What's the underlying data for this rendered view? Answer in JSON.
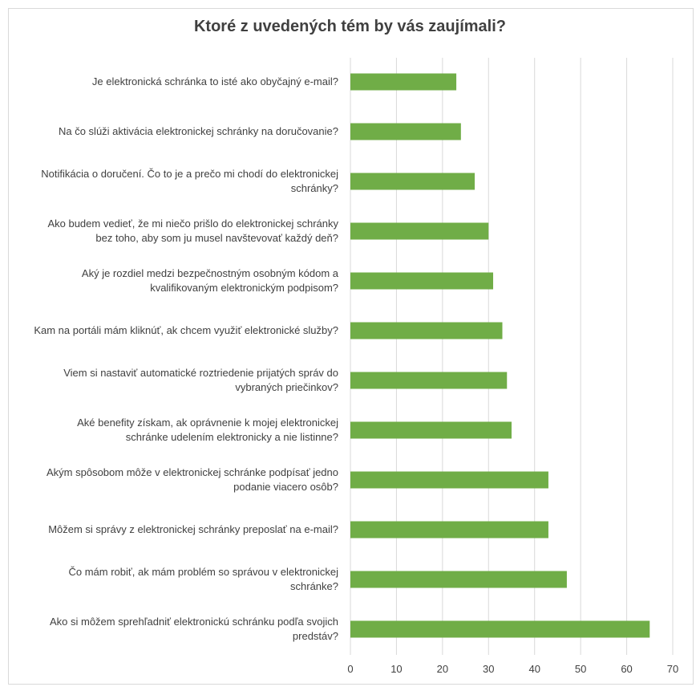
{
  "chart_data": {
    "type": "bar",
    "orientation": "horizontal",
    "title": "Ktoré z uvedených tém by vás zaujímali?",
    "categories": [
      "Je elektronická schránka to isté ako obyčajný e-mail?",
      "Na čo slúži aktivácia elektronickej schránky na doručovanie?",
      "Notifikácia o doručení. Čo to je a prečo mi chodí do elektronickej schránky?",
      "Ako budem vedieť, že mi niečo prišlo do elektronickej schránky bez toho, aby som ju musel navštevovať každý deň?",
      "Aký je rozdiel medzi bezpečnostným osobným kódom a kvalifikovaným elektronickým podpisom?",
      "Kam na portáli mám kliknúť, ak chcem využiť elektronické služby?",
      "Viem si nastaviť automatické roztriedenie prijatých správ do vybraných priečinkov?",
      "Aké benefity získam, ak oprávnenie k mojej elektronickej schránke udelením elektronicky a nie listinne?",
      "Akým spôsobom môže v elektronickej schránke podpísať jedno podanie viacero osôb?",
      "Môžem si správy z elektronickej schránky preposlať na e-mail?",
      "Čo mám robiť, ak mám problém so správou v elektronickej schránke?",
      "Ako si môžem sprehľadniť elektronickú schránku podľa svojich predstáv?"
    ],
    "label_lines": [
      [
        "Je elektronická schránka to isté ako obyčajný e-mail?"
      ],
      [
        "Na čo slúži aktivácia elektronickej schránky na doručovanie?"
      ],
      [
        "Notifikácia o doručení. Čo to je a prečo mi chodí do elektronickej",
        "schránky?"
      ],
      [
        "Ako budem vedieť, že mi niečo prišlo do elektronickej schránky",
        "bez toho, aby som ju musel navštevovať každý deň?"
      ],
      [
        "Aký je rozdiel medzi bezpečnostným osobným kódom a",
        "kvalifikovaným elektronickým podpisom?"
      ],
      [
        "Kam na portáli mám kliknúť, ak chcem využiť elektronické služby?"
      ],
      [
        "Viem si nastaviť automatické roztriedenie prijatých správ do",
        "vybraných priečinkov?"
      ],
      [
        "Aké benefity získam, ak oprávnenie k mojej elektronickej",
        "schránke udelením elektronicky a nie listinne?"
      ],
      [
        "Akým spôsobom môže v elektronickej schránke podpísať jedno",
        "podanie viacero osôb?"
      ],
      [
        "Môžem si správy z elektronickej schránky preposlať na e-mail?"
      ],
      [
        "Čo mám robiť, ak mám problém so správou v elektronickej",
        "schránke?"
      ],
      [
        "Ako si môžem sprehľadniť elektronickú schránku podľa svojich",
        "predstáv?"
      ]
    ],
    "values": [
      23,
      24,
      27,
      30,
      31,
      33,
      34,
      35,
      43,
      43,
      47,
      65
    ],
    "xlim": [
      0,
      70
    ],
    "xticks": [
      0,
      10,
      20,
      30,
      40,
      50,
      60,
      70
    ],
    "xlabel": "",
    "ylabel": "",
    "grid": "vertical",
    "legend": "none",
    "bar_color": "#70ad47",
    "grid_color": "#d9d9d9",
    "text_color": "#404040"
  }
}
